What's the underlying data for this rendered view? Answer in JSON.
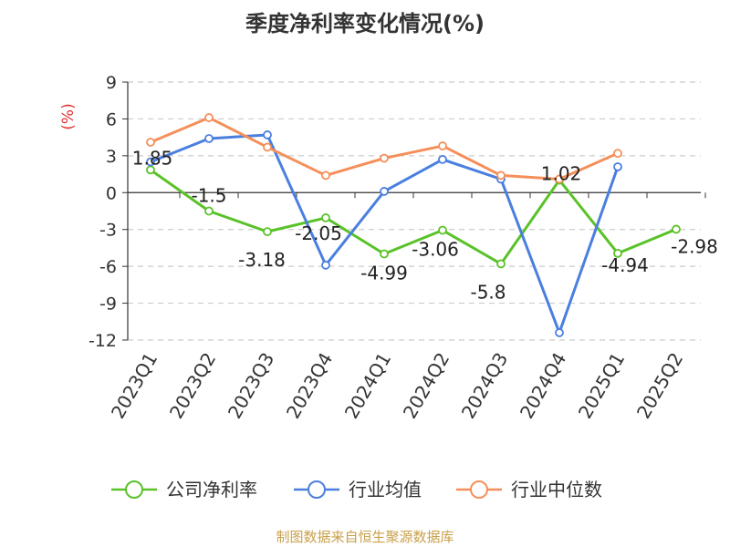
{
  "title": "季度净利率变化情况(%)",
  "footer": {
    "text": "制图数据来自恒生聚源数据库",
    "color": "#c9a04b"
  },
  "chart_data": {
    "type": "line",
    "title": "季度净利率变化情况(%)",
    "ylabel": "(%)",
    "ylabel_color": "#e03030",
    "ylim": [
      -12,
      9
    ],
    "yticks": [
      9,
      6,
      3,
      0,
      -3,
      -6,
      -9,
      -12
    ],
    "yticklabels": [
      "9",
      "6",
      "3",
      "0",
      "-3",
      "-6",
      "-9",
      "-12"
    ],
    "grid": true,
    "legend_position": "bottom",
    "categories": [
      "2023Q1",
      "2023Q2",
      "2023Q3",
      "2023Q4",
      "2024Q1",
      "2024Q2",
      "2024Q3",
      "2024Q4",
      "2025Q1",
      "2025Q2"
    ],
    "series": [
      {
        "name": "公司净利率",
        "color": "#5ac229",
        "values": [
          1.85,
          -1.5,
          -3.18,
          -2.05,
          -4.99,
          -3.06,
          -5.8,
          1.02,
          -4.94,
          -2.98
        ],
        "labels": [
          "1.85",
          "-1.5",
          "-3.18",
          "-2.05",
          "-4.99",
          "-3.06",
          "-5.8",
          "1.02",
          "-4.94",
          "-2.98"
        ]
      },
      {
        "name": "行业均值",
        "color": "#4a7fe0",
        "values": [
          2.5,
          4.4,
          4.7,
          -5.9,
          0.1,
          2.7,
          1.1,
          -11.4,
          2.1,
          null
        ]
      },
      {
        "name": "行业中位数",
        "color": "#f58f5a",
        "values": [
          4.1,
          6.1,
          3.7,
          1.4,
          2.8,
          3.8,
          1.4,
          1.1,
          3.2,
          null
        ]
      }
    ]
  }
}
